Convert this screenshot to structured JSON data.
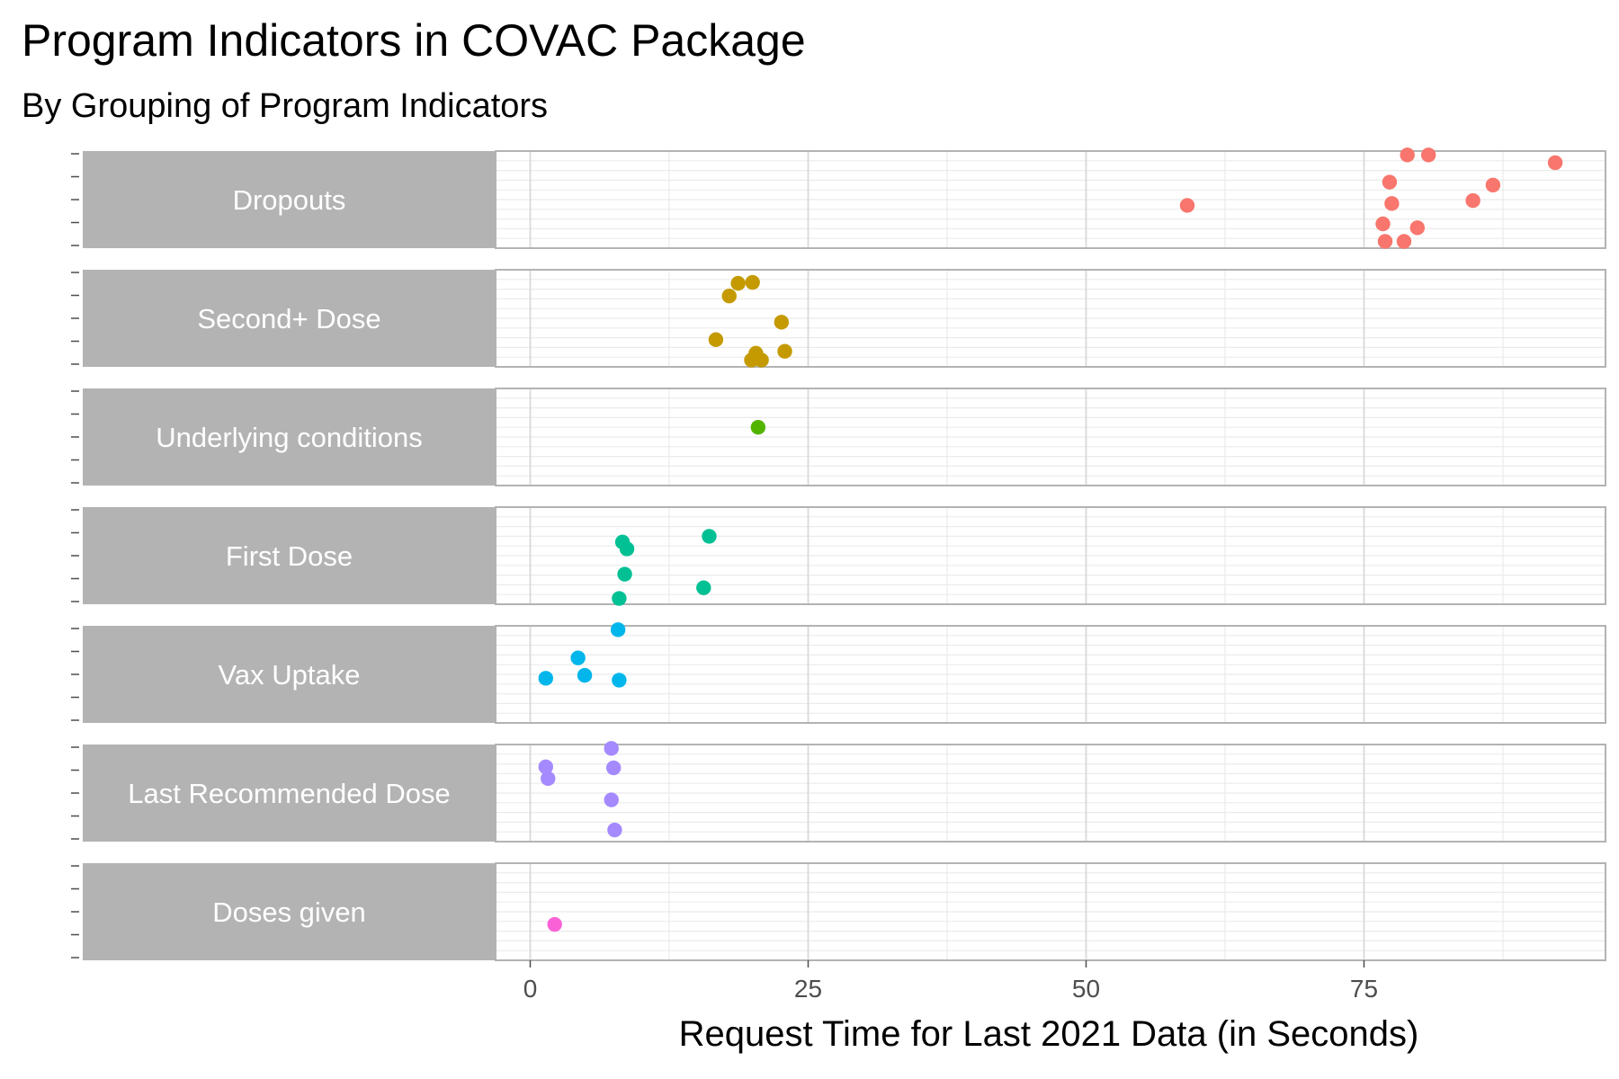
{
  "chart_data": {
    "type": "scatter",
    "title": "Program Indicators in COVAC Package",
    "subtitle": "By Grouping of Program Indicators",
    "xlabel": "Request Time for Last 2021 Data (in Seconds)",
    "ylabel": "",
    "xlim": [
      -3.1,
      96.5
    ],
    "x_ticks": [
      0,
      25,
      50,
      75
    ],
    "grid": true,
    "legend": "none",
    "facets": [
      {
        "name": "Dropouts",
        "color": "#F8766D",
        "x": [
          78.9,
          80.8,
          92.2,
          77.3,
          86.6,
          59.1,
          77.5,
          84.8,
          76.7,
          79.8,
          76.9,
          78.6
        ],
        "jitter": [
          0.04,
          0.04,
          0.12,
          0.32,
          0.35,
          0.56,
          0.54,
          0.51,
          0.75,
          0.79,
          0.93,
          0.93
        ]
      },
      {
        "name": "Second+ Dose",
        "color": "#C49A00",
        "x": [
          18.7,
          20.0,
          17.9,
          22.6,
          16.7,
          20.3,
          22.9,
          19.9,
          20.8
        ],
        "jitter": [
          0.14,
          0.13,
          0.27,
          0.54,
          0.72,
          0.86,
          0.84,
          0.93,
          0.93
        ]
      },
      {
        "name": "Underlying conditions",
        "color": "#53B400",
        "x": [
          20.5
        ],
        "jitter": [
          0.4
        ]
      },
      {
        "name": "First Dose",
        "color": "#00C094",
        "x": [
          16.1,
          8.3,
          8.7,
          8.5,
          15.6,
          8.0
        ],
        "jitter": [
          0.3,
          0.36,
          0.43,
          0.69,
          0.83,
          0.94
        ]
      },
      {
        "name": "Vax Uptake",
        "color": "#00B6EB",
        "x": [
          7.9,
          4.3,
          4.9,
          1.4,
          8.0
        ],
        "jitter": [
          0.04,
          0.33,
          0.51,
          0.54,
          0.56
        ]
      },
      {
        "name": "Last Recommended Dose",
        "color": "#A58AFF",
        "x": [
          7.3,
          1.4,
          7.5,
          1.6,
          7.3,
          7.6
        ],
        "jitter": [
          0.04,
          0.23,
          0.24,
          0.35,
          0.57,
          0.88
        ]
      },
      {
        "name": "Doses given",
        "color": "#FB61D7",
        "x": [
          2.2
        ],
        "jitter": [
          0.63
        ]
      }
    ]
  }
}
